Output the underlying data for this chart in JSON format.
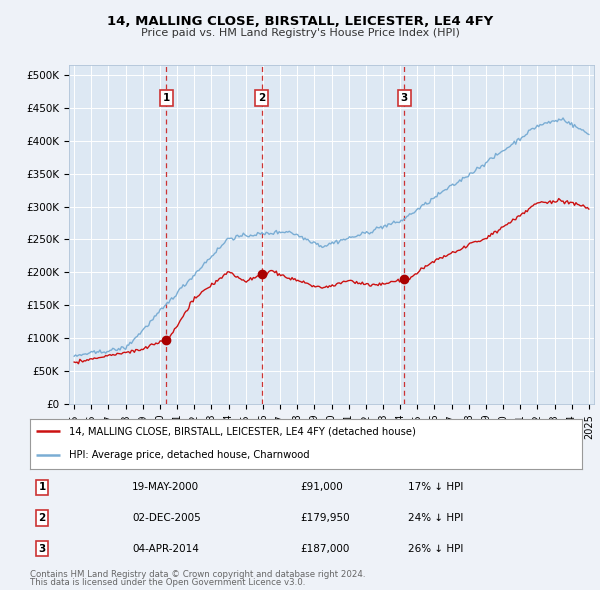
{
  "title": "14, MALLING CLOSE, BIRSTALL, LEICESTER, LE4 4FY",
  "subtitle": "Price paid vs. HM Land Registry's House Price Index (HPI)",
  "background_color": "#f0f4f8",
  "plot_bg_color": "#e0eaf4",
  "red_line_label": "14, MALLING CLOSE, BIRSTALL, LEICESTER, LE4 4FY (detached house)",
  "blue_line_label": "HPI: Average price, detached house, Charnwood",
  "transactions": [
    {
      "num": 1,
      "date": "19-MAY-2000",
      "price": 91000,
      "pct": "17%",
      "dir": "↓",
      "year": 2000.38
    },
    {
      "num": 2,
      "date": "02-DEC-2005",
      "price": 179950,
      "pct": "24%",
      "dir": "↓",
      "year": 2005.92
    },
    {
      "num": 3,
      "date": "04-APR-2014",
      "price": 187000,
      "pct": "26%",
      "dir": "↓",
      "year": 2014.25
    }
  ],
  "footer1": "Contains HM Land Registry data © Crown copyright and database right 2024.",
  "footer2": "This data is licensed under the Open Government Licence v3.0.",
  "yticks": [
    0,
    50000,
    100000,
    150000,
    200000,
    250000,
    300000,
    350000,
    400000,
    450000,
    500000
  ],
  "ylim": [
    0,
    515000
  ],
  "xlim_start": 1994.7,
  "xlim_end": 2025.3
}
